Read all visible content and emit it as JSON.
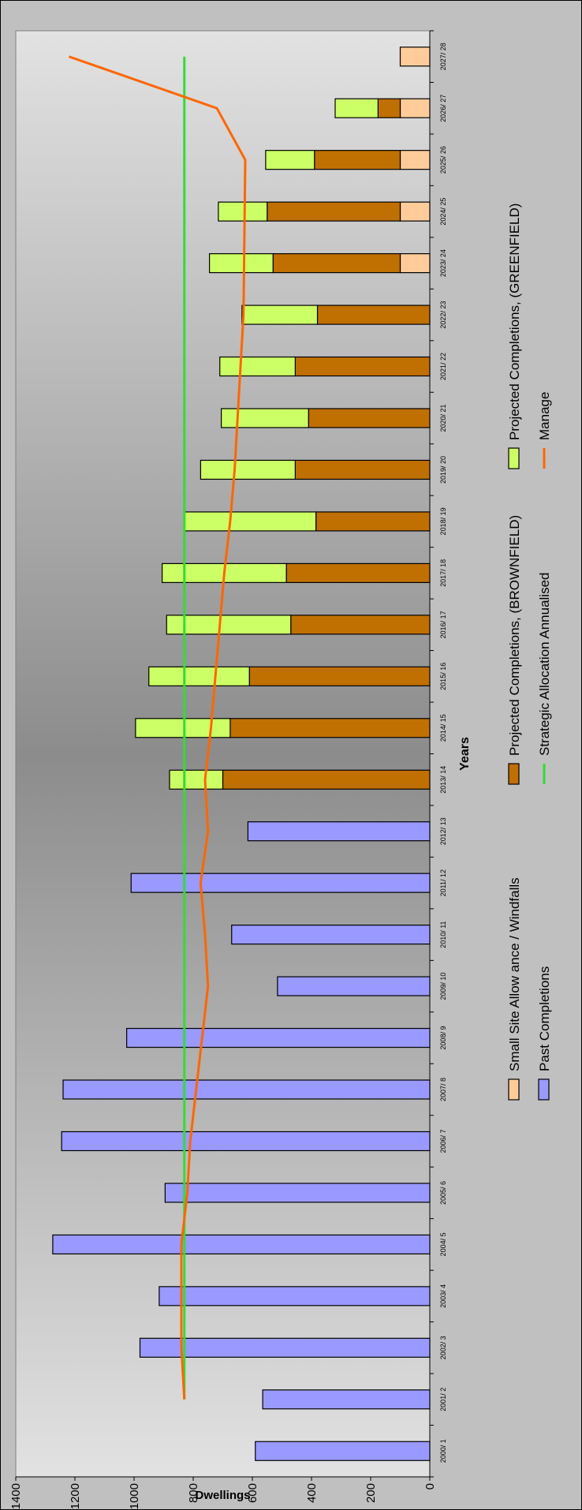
{
  "chart_data": {
    "type": "bar",
    "stacked": true,
    "categories": [
      "2000/ 1",
      "2001/ 2",
      "2002/ 3",
      "2003/ 4",
      "2004/ 5",
      "2005/ 6",
      "2006/ 7",
      "2007/ 8",
      "2008/ 9",
      "2009/ 10",
      "2010/ 11",
      "2011/ 12",
      "2012/ 13",
      "2013/ 14",
      "2014/ 15",
      "2015/ 16",
      "2016/ 17",
      "2017/ 18",
      "2018/ 19",
      "2019/ 20",
      "2020/ 21",
      "2021/ 22",
      "2022/ 23",
      "2023/ 24",
      "2024/ 25",
      "2025/ 26",
      "2026/ 27",
      "2027/ 28"
    ],
    "series": [
      {
        "name": "Small Site Allow ance / Windfalls",
        "color": "#ffcc99",
        "values": [
          0,
          0,
          0,
          0,
          0,
          0,
          0,
          0,
          0,
          0,
          0,
          0,
          0,
          0,
          0,
          0,
          0,
          0,
          0,
          0,
          0,
          0,
          0,
          100,
          100,
          100,
          100,
          100
        ]
      },
      {
        "name": "Projected Completions, (BROWNFIELD)",
        "color": "#c07000",
        "values": [
          0,
          0,
          0,
          0,
          0,
          0,
          0,
          0,
          0,
          0,
          0,
          0,
          0,
          700,
          675,
          610,
          470,
          485,
          385,
          455,
          410,
          455,
          380,
          430,
          450,
          290,
          75,
          0
        ]
      },
      {
        "name": "Projected Completions, (GREENFIELD)",
        "color": "#ccff66",
        "values": [
          0,
          0,
          0,
          0,
          0,
          0,
          0,
          0,
          0,
          0,
          0,
          0,
          0,
          180,
          320,
          340,
          420,
          420,
          445,
          320,
          295,
          255,
          255,
          215,
          165,
          165,
          145,
          0
        ]
      },
      {
        "name": "Past Completions",
        "color": "#9999ff",
        "values": [
          590,
          565,
          980,
          915,
          1275,
          895,
          1245,
          1240,
          1025,
          515,
          670,
          1010,
          615,
          0,
          0,
          0,
          0,
          0,
          0,
          0,
          0,
          0,
          0,
          0,
          0,
          0,
          0,
          0
        ]
      }
    ],
    "lines": [
      {
        "name": "Strategic Allocation Annualised",
        "color": "#33dd33",
        "values": [
          null,
          830,
          830,
          830,
          830,
          830,
          830,
          830,
          830,
          830,
          830,
          830,
          830,
          830,
          830,
          830,
          830,
          830,
          830,
          830,
          830,
          830,
          830,
          830,
          830,
          830,
          830,
          830
        ]
      },
      {
        "name": "Manage",
        "color": "#ff6600",
        "values": [
          null,
          830,
          840,
          840,
          840,
          820,
          810,
          790,
          770,
          750,
          760,
          775,
          750,
          760,
          740,
          725,
          710,
          695,
          675,
          660,
          650,
          640,
          630,
          628,
          626,
          624,
          720,
          1220
        ]
      }
    ],
    "ylabel": "Dwellings",
    "xlabel": "Years",
    "ylim": [
      0,
      1400
    ],
    "yticks": [
      "0",
      "200",
      "400",
      "600",
      "800",
      "1000",
      "1200",
      "1400"
    ],
    "legend_position": "bottom"
  }
}
